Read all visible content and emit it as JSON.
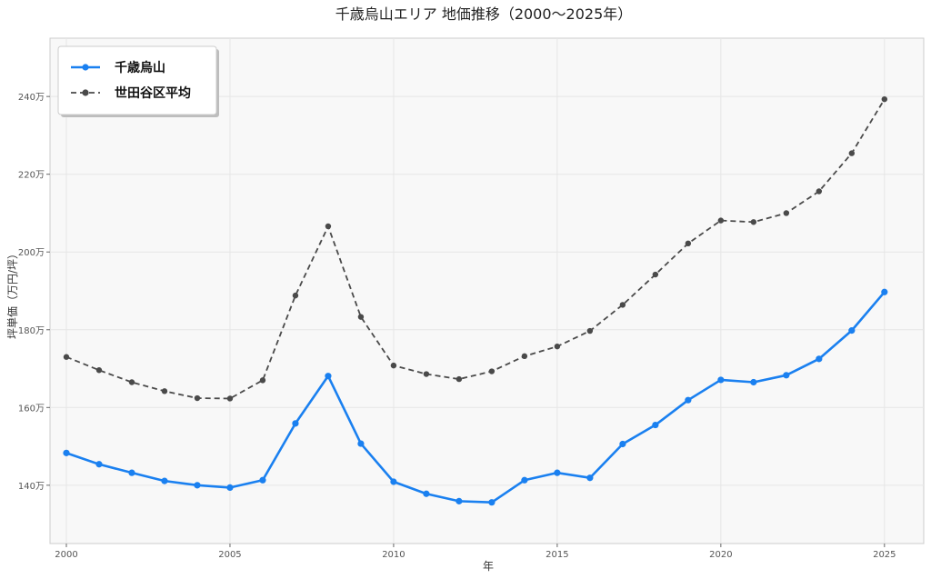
{
  "chart_data": {
    "type": "line",
    "title": "千歳烏山エリア 地価推移（2000～2025年）",
    "xlabel": "年",
    "ylabel": "坪単価（万円/坪）",
    "x": [
      2000,
      2001,
      2002,
      2003,
      2004,
      2005,
      2006,
      2007,
      2008,
      2009,
      2010,
      2011,
      2012,
      2013,
      2014,
      2015,
      2016,
      2017,
      2018,
      2019,
      2020,
      2021,
      2022,
      2023,
      2024,
      2025
    ],
    "xlim": [
      1999.5,
      2026.2
    ],
    "ylim": [
      125,
      255
    ],
    "xticks": [
      2000,
      2005,
      2010,
      2015,
      2020,
      2025
    ],
    "yticks": [
      {
        "value": 140,
        "label": "140万"
      },
      {
        "value": 160,
        "label": "160万"
      },
      {
        "value": 180,
        "label": "180万"
      },
      {
        "value": 200,
        "label": "200万"
      },
      {
        "value": 220,
        "label": "220万"
      },
      {
        "value": 240,
        "label": "240万"
      }
    ],
    "grid": true,
    "legend_position": "top-left",
    "series": [
      {
        "name": "千歳烏山",
        "color": "#1a80f0",
        "style": "solid",
        "values": [
          148.3,
          145.4,
          143.2,
          141.1,
          140.0,
          139.4,
          141.3,
          155.9,
          168.1,
          150.7,
          140.9,
          137.8,
          135.9,
          135.6,
          141.3,
          143.2,
          141.9,
          150.6,
          155.5,
          161.9,
          167.1,
          166.5,
          168.3,
          172.5,
          179.8,
          189.7
        ]
      },
      {
        "name": "世田谷区平均",
        "color": "#4a4a4a",
        "style": "dashed",
        "values": [
          173.0,
          169.6,
          166.5,
          164.2,
          162.4,
          162.3,
          167.0,
          188.8,
          206.6,
          183.3,
          170.8,
          168.6,
          167.3,
          169.3,
          173.2,
          175.7,
          179.7,
          186.4,
          194.2,
          202.2,
          208.1,
          207.7,
          210.0,
          215.6,
          225.4,
          239.3
        ]
      }
    ]
  }
}
